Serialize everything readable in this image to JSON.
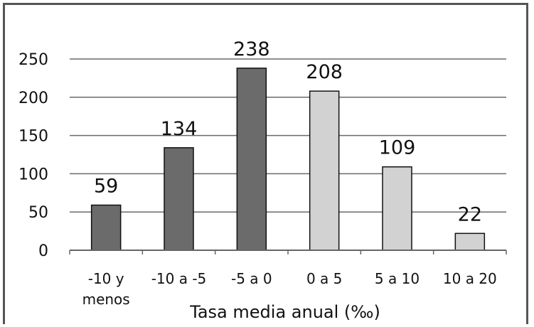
{
  "chart_data": {
    "type": "bar",
    "title": "",
    "xlabel": "Tasa media anual (‰)",
    "ylabel": "",
    "categories": [
      [
        "-10 y",
        "menos"
      ],
      [
        "-10 a -5"
      ],
      [
        "-5 a 0"
      ],
      [
        "0 a 5"
      ],
      [
        "5 a 10"
      ],
      [
        "10 a 20"
      ]
    ],
    "values": [
      59,
      134,
      238,
      208,
      109,
      22
    ],
    "data_labels": [
      "59",
      "134",
      "238",
      "208",
      "109",
      "22"
    ],
    "ylim": [
      0,
      250
    ],
    "yticks": [
      0,
      50,
      100,
      150,
      200,
      250
    ],
    "grid": true,
    "legend": "none",
    "bar_colors": [
      "#6b6b6b",
      "#6b6b6b",
      "#6b6b6b",
      "#d2d2d2",
      "#d2d2d2",
      "#d2d2d2"
    ],
    "bar_edge_color": "#111111"
  }
}
